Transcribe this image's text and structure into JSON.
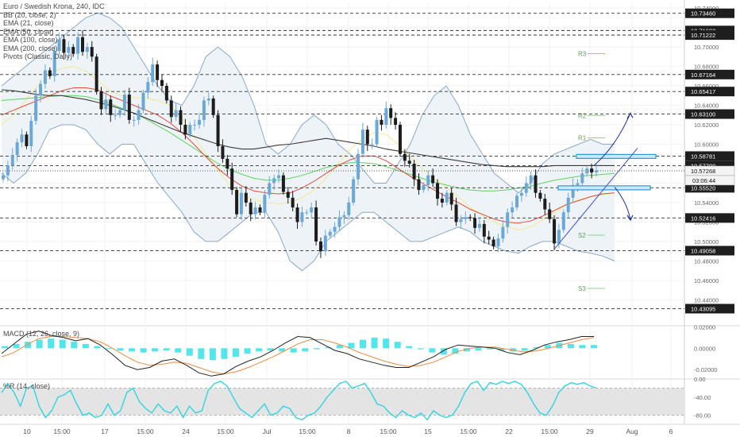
{
  "legend": {
    "title": "Euro / Swedish Krona, 240, IDC",
    "indicators": [
      "BB (20, close, 2)",
      "EMA (21, close)",
      "EMA (50, close)",
      "EMA (100, close)",
      "EMA (200, close)",
      "Pivots (Classic, Daily)"
    ]
  },
  "macd_label": "MACD (12, 26, close, 9)",
  "wr_label": "%R (14, close)",
  "countdown": "03:06:44",
  "colors": {
    "up_candle": "#6ba8d8",
    "down_candle": "#1c1c1c",
    "bb": "#8aa9c9",
    "bb_fill": "#eef3f8",
    "ema21": "#f2ea8c",
    "ema50": "#e34b3d",
    "ema100": "#5fd35f",
    "ema200": "#3c3c3c",
    "pivot": "#8fd18f",
    "arrow": "#1a2fa8",
    "box": "#2a9ad8",
    "macd_hist": "#34e0e8",
    "wr": "#2ed5df"
  },
  "chart_data": [
    {
      "type": "candlestick",
      "title": "Euro / Swedish Krona, 240, IDC",
      "ylim": [
        10.415,
        10.745
      ],
      "y_ticks": [
        "10.74000",
        "10.72000",
        "10.70000",
        "10.68000",
        "10.66000",
        "10.64000",
        "10.62000",
        "10.60000",
        "10.58000",
        "10.56000",
        "10.54000",
        "10.52000",
        "10.50000",
        "10.48000",
        "10.46000",
        "10.44000"
      ],
      "x_ticks": [
        "10",
        "15:00",
        "17",
        "15:00",
        "24",
        "15:00",
        "Jul",
        "15:00",
        "8",
        "15:00",
        "15",
        "15:00",
        "22",
        "15:00",
        "29",
        "Aug",
        "6"
      ],
      "price_levels": [
        10.7346,
        10.71692,
        10.71222,
        10.67164,
        10.65417,
        10.631,
        10.58781,
        10.5779,
        10.5552,
        10.52416,
        10.49058,
        10.43095
      ],
      "current_price": 10.57268,
      "pivots": [
        {
          "label": "R3",
          "value": 10.6931
        },
        {
          "label": "R2",
          "value": 10.6295
        },
        {
          "label": "R1",
          "value": 10.6065
        },
        {
          "label": "S2",
          "value": 10.5065
        },
        {
          "label": "S3",
          "value": 10.4518
        }
      ],
      "close": [
        10.568,
        10.578,
        10.589,
        10.602,
        10.61,
        10.598,
        10.624,
        10.65,
        10.662,
        10.676,
        10.67,
        10.696,
        10.708,
        10.694,
        10.7,
        10.693,
        10.71,
        10.695,
        10.7,
        10.69,
        10.654,
        10.636,
        10.646,
        10.63,
        10.63,
        10.635,
        10.651,
        10.625,
        10.625,
        10.635,
        10.653,
        10.664,
        10.682,
        10.666,
        10.66,
        10.645,
        10.628,
        10.635,
        10.62,
        10.61,
        10.62,
        10.62,
        10.625,
        10.645,
        10.647,
        10.63,
        10.598,
        10.585,
        10.575,
        10.553,
        10.528,
        10.55,
        10.54,
        10.528,
        10.535,
        10.53,
        10.548,
        10.56,
        10.565,
        10.568,
        10.551,
        10.545,
        10.535,
        10.52,
        10.53,
        10.53,
        10.535,
        10.5,
        10.49,
        10.506,
        10.51,
        10.515,
        10.525,
        10.527,
        10.54,
        10.564,
        10.59,
        10.615,
        10.6,
        10.6,
        10.625,
        10.62,
        10.637,
        10.627,
        10.62,
        10.59,
        10.583,
        10.58,
        10.564,
        10.553,
        10.558,
        10.568,
        10.56,
        10.544,
        10.54,
        10.55,
        10.538,
        10.52,
        10.523,
        10.525,
        10.524,
        10.514,
        10.518,
        10.505,
        10.502,
        10.495,
        10.503,
        10.515,
        10.53,
        10.535,
        10.547,
        10.55,
        10.56,
        10.568,
        10.55,
        10.544,
        10.533,
        10.523,
        10.498,
        10.512,
        10.53,
        10.545,
        10.558,
        10.56,
        10.57,
        10.575,
        10.571,
        10.573
      ],
      "bb_upper": [
        10.66,
        10.67,
        10.68,
        10.69,
        10.7,
        10.71,
        10.72,
        10.73,
        10.735,
        10.73,
        10.72,
        10.7,
        10.68,
        10.66,
        10.645,
        10.64,
        10.66,
        10.69,
        10.7,
        10.69,
        10.67,
        10.64,
        10.6,
        10.59,
        10.6,
        10.62,
        10.63,
        10.62,
        10.6,
        10.59,
        10.575,
        10.56,
        10.56,
        10.58,
        10.6,
        10.63,
        10.65,
        10.66,
        10.64,
        10.61,
        10.59,
        10.57,
        10.56,
        10.55,
        10.56,
        10.58,
        10.59,
        10.595,
        10.6,
        10.605,
        10.6,
        10.6
      ],
      "bb_lower": [
        10.57,
        10.56,
        10.57,
        10.59,
        10.615,
        10.62,
        10.62,
        10.615,
        10.6,
        10.59,
        10.6,
        10.6,
        10.58,
        10.56,
        10.545,
        10.53,
        10.51,
        10.5,
        10.5,
        10.51,
        10.52,
        10.53,
        10.53,
        10.51,
        10.48,
        10.47,
        10.48,
        10.5,
        10.51,
        10.52,
        10.53,
        10.53,
        10.52,
        10.51,
        10.5,
        10.5,
        10.505,
        10.51,
        10.515,
        10.51,
        10.5,
        10.495,
        10.49,
        10.488,
        10.495,
        10.5,
        10.5,
        10.495,
        10.49,
        10.488,
        10.485,
        10.48
      ],
      "ema21": [
        10.62,
        10.63,
        10.645,
        10.66,
        10.672,
        10.678,
        10.68,
        10.675,
        10.665,
        10.655,
        10.65,
        10.648,
        10.647,
        10.645,
        10.64,
        10.628,
        10.608,
        10.59,
        10.573,
        10.558,
        10.548,
        10.543,
        10.54,
        10.539,
        10.54,
        10.545,
        10.553,
        10.565,
        10.58,
        10.595,
        10.605,
        10.612,
        10.61,
        10.6,
        10.587,
        10.575,
        10.565,
        10.556,
        10.546,
        10.535,
        10.527,
        10.52,
        10.515,
        10.512,
        10.515,
        10.522,
        10.53,
        10.538,
        10.543,
        10.546,
        10.548,
        10.55
      ],
      "ema50": [
        10.63,
        10.635,
        10.64,
        10.645,
        10.65,
        10.655,
        10.658,
        10.658,
        10.656,
        10.65,
        10.645,
        10.64,
        10.635,
        10.63,
        10.622,
        10.612,
        10.6,
        10.587,
        10.575,
        10.565,
        10.557,
        10.552,
        10.55,
        10.549,
        10.55,
        10.555,
        10.562,
        10.57,
        10.578,
        10.584,
        10.588,
        10.588,
        10.583,
        10.575,
        10.567,
        10.56,
        10.553,
        10.546,
        10.54,
        10.533,
        10.528,
        10.523,
        10.52,
        10.519,
        10.521,
        10.526,
        10.532,
        10.538,
        10.542,
        10.546,
        10.549,
        10.55
      ],
      "ema100": [
        10.645,
        10.646,
        10.647,
        10.648,
        10.649,
        10.65,
        10.65,
        10.649,
        10.646,
        10.642,
        10.637,
        10.632,
        10.626,
        10.619,
        10.612,
        10.604,
        10.596,
        10.588,
        10.58,
        10.574,
        10.569,
        10.565,
        10.563,
        10.563,
        10.565,
        10.568,
        10.572,
        10.576,
        10.579,
        10.581,
        10.581,
        10.58,
        10.577,
        10.573,
        10.569,
        10.565,
        10.561,
        10.558,
        10.555,
        10.553,
        10.552,
        10.552,
        10.553,
        10.555,
        10.557,
        10.56,
        10.563,
        10.565,
        10.567,
        10.568,
        10.569,
        10.57
      ],
      "ema200": [
        10.656,
        10.655,
        10.653,
        10.651,
        10.65,
        10.65,
        10.648,
        10.646,
        10.643,
        10.64,
        10.636,
        10.632,
        10.627,
        10.622,
        10.617,
        10.612,
        10.608,
        10.604,
        10.6,
        10.597,
        10.595,
        10.595,
        10.597,
        10.599,
        10.6,
        10.602,
        10.604,
        10.606,
        10.604,
        10.602,
        10.6,
        10.598,
        10.595,
        10.593,
        10.591,
        10.589,
        10.587,
        10.585,
        10.583,
        10.581,
        10.579,
        10.578,
        10.577,
        10.577,
        10.577,
        10.577,
        10.578,
        10.578,
        10.578,
        10.578,
        10.578,
        10.578
      ]
    },
    {
      "type": "bar",
      "title": "MACD (12, 26, close, 9)",
      "ylim": [
        -0.028,
        0.021
      ],
      "y_ticks": [
        "0.02000",
        "0.00000",
        "-0.02000"
      ],
      "histogram": [
        0.002,
        0.004,
        0.006,
        0.008,
        0.009,
        0.008,
        0.006,
        0.004,
        0.002,
        0.0,
        -0.002,
        -0.003,
        -0.004,
        -0.003,
        -0.002,
        -0.004,
        -0.007,
        -0.01,
        -0.011,
        -0.01,
        -0.008,
        -0.005,
        -0.003,
        -0.002,
        -0.003,
        -0.004,
        -0.003,
        -0.001,
        0.001,
        0.003,
        0.005,
        0.008,
        0.01,
        0.009,
        0.006,
        0.002,
        -0.001,
        -0.004,
        -0.006,
        -0.005,
        -0.003,
        -0.002,
        -0.001,
        -0.002,
        -0.003,
        -0.002,
        0.001,
        0.003,
        0.005,
        0.004,
        0.003,
        0.003
      ],
      "macd": [
        -0.005,
        0.004,
        0.013,
        0.016,
        0.012,
        0.01,
        0.007,
        0.009,
        0.003,
        -0.006,
        -0.016,
        -0.02,
        -0.018,
        -0.012,
        -0.01,
        -0.016,
        -0.023,
        -0.026,
        -0.024,
        -0.017,
        -0.012,
        -0.008,
        -0.002,
        0.005,
        0.011,
        0.01,
        0.004,
        -0.002,
        -0.005,
        -0.01,
        -0.013,
        -0.016,
        -0.018,
        -0.018,
        -0.013,
        -0.008,
        -0.001,
        0.003,
        0.002,
        0.001,
        0.0,
        -0.004,
        -0.006,
        -0.002,
        0.003,
        0.006,
        0.008,
        0.011,
        0.011
      ],
      "signal": [
        -0.008,
        -0.004,
        0.003,
        0.009,
        0.011,
        0.011,
        0.01,
        0.009,
        0.006,
        0.0,
        -0.007,
        -0.013,
        -0.016,
        -0.015,
        -0.013,
        -0.014,
        -0.018,
        -0.022,
        -0.024,
        -0.022,
        -0.018,
        -0.013,
        -0.008,
        -0.002,
        0.004,
        0.008,
        0.008,
        0.005,
        0.001,
        -0.004,
        -0.008,
        -0.012,
        -0.015,
        -0.017,
        -0.016,
        -0.013,
        -0.008,
        -0.003,
        0.0,
        0.001,
        0.001,
        -0.001,
        -0.003,
        -0.003,
        -0.001,
        0.002,
        0.005,
        0.008,
        0.01
      ]
    },
    {
      "type": "line",
      "title": "%R (14, close)",
      "ylim": [
        -100,
        0
      ],
      "y_ticks": [
        "0.00",
        "-40.00",
        "-80.00"
      ],
      "band": [
        -80,
        -20
      ],
      "values": [
        -30,
        -10,
        -30,
        -60,
        -20,
        -15,
        -60,
        -85,
        -70,
        -40,
        -35,
        -25,
        -55,
        -80,
        -75,
        -85,
        -80,
        -55,
        -80,
        -70,
        -30,
        -20,
        -50,
        -65,
        -75,
        -55,
        -70,
        -75,
        -60,
        -85,
        -60,
        -75,
        -70,
        -25,
        -10,
        -5,
        -15,
        -40,
        -65,
        -75,
        -85,
        -70,
        -55,
        -80,
        -75,
        -60,
        -65,
        -85,
        -90,
        -80,
        -75,
        -60,
        -40,
        -25,
        -10,
        -5,
        -20,
        -15,
        -10,
        -30,
        -55,
        -60,
        -75,
        -85,
        -70,
        -80,
        -85,
        -75,
        -90,
        -70,
        -80,
        -85,
        -80,
        -60,
        -30,
        -10,
        -5,
        -25,
        -8,
        -12,
        -5,
        -10,
        -5,
        -12,
        -30,
        -55,
        -75,
        -80,
        -60,
        -30,
        -15,
        -8,
        -12,
        -8,
        -15,
        -20
      ]
    }
  ]
}
